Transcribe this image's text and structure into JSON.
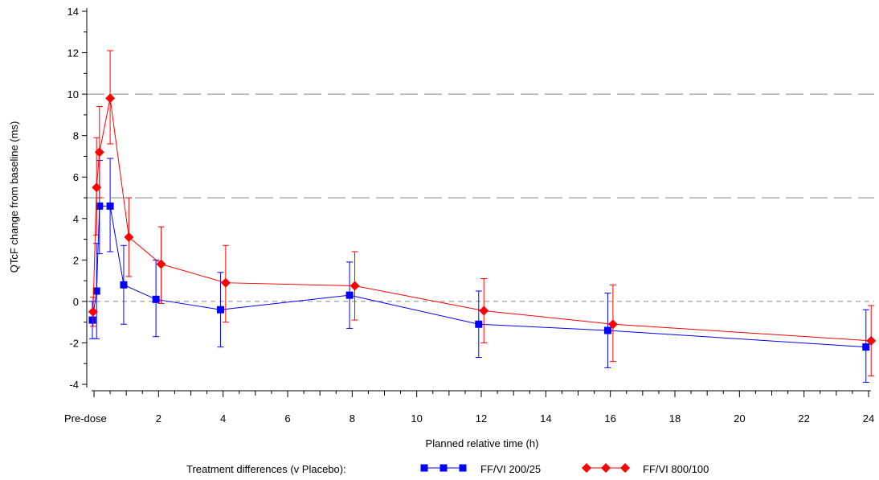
{
  "chart_data": {
    "type": "line",
    "xlabel": "Planned relative time (h)",
    "ylabel": "QTcF change from baseline (ms)",
    "xlim": [
      0,
      24
    ],
    "ylim": [
      -4,
      14
    ],
    "x_ticks": [
      {
        "value": 0,
        "label": "Pre-dose"
      },
      {
        "value": 2,
        "label": "2"
      },
      {
        "value": 4,
        "label": "4"
      },
      {
        "value": 6,
        "label": "6"
      },
      {
        "value": 8,
        "label": "8"
      },
      {
        "value": 10,
        "label": "10"
      },
      {
        "value": 12,
        "label": "12"
      },
      {
        "value": 14,
        "label": "14"
      },
      {
        "value": 16,
        "label": "16"
      },
      {
        "value": 18,
        "label": "18"
      },
      {
        "value": 20,
        "label": "20"
      },
      {
        "value": 22,
        "label": "22"
      },
      {
        "value": 24,
        "label": "24"
      }
    ],
    "y_ticks": [
      -4,
      -2,
      0,
      2,
      4,
      6,
      8,
      10,
      12,
      14
    ],
    "reference_lines": [
      0,
      5,
      10
    ],
    "legend": {
      "title": "Treatment differences (v Placebo):",
      "placement": "bottom"
    },
    "series": [
      {
        "name": "FF/VI 200/25",
        "color": "#0000ff",
        "marker": "square",
        "points": [
          {
            "x": -0.05,
            "y": -0.9,
            "low": -1.8,
            "high": 0.0
          },
          {
            "x": 0.08,
            "y": 0.5,
            "low": -1.8,
            "high": 2.8
          },
          {
            "x": 0.17,
            "y": 4.6,
            "low": 2.3,
            "high": 6.8
          },
          {
            "x": 0.5,
            "y": 4.6,
            "low": 2.4,
            "high": 6.9
          },
          {
            "x": 0.92,
            "y": 0.8,
            "low": -1.1,
            "high": 2.7
          },
          {
            "x": 1.92,
            "y": 0.1,
            "low": -1.7,
            "high": 2.0
          },
          {
            "x": 3.92,
            "y": -0.4,
            "low": -2.2,
            "high": 1.4
          },
          {
            "x": 7.92,
            "y": 0.3,
            "low": -1.3,
            "high": 1.9
          },
          {
            "x": 11.92,
            "y": -1.1,
            "low": -2.7,
            "high": 0.5
          },
          {
            "x": 15.92,
            "y": -1.4,
            "low": -3.2,
            "high": 0.4
          },
          {
            "x": 23.92,
            "y": -2.2,
            "low": -3.9,
            "high": -0.4
          }
        ]
      },
      {
        "name": "FF/VI 800/100",
        "color": "#ff0000",
        "marker": "diamond",
        "points": [
          {
            "x": -0.03,
            "y": -0.5,
            "low": -1.2,
            "high": 0.2
          },
          {
            "x": 0.08,
            "y": 5.5,
            "low": 3.2,
            "high": 7.9
          },
          {
            "x": 0.17,
            "y": 7.2,
            "low": 5.0,
            "high": 9.4
          },
          {
            "x": 0.5,
            "y": 9.8,
            "low": 7.6,
            "high": 12.1
          },
          {
            "x": 1.08,
            "y": 3.1,
            "low": 1.2,
            "high": 5.0
          },
          {
            "x": 2.08,
            "y": 1.8,
            "low": -0.1,
            "high": 3.6
          },
          {
            "x": 4.08,
            "y": 0.9,
            "low": -1.0,
            "high": 2.7
          },
          {
            "x": 8.08,
            "y": 0.75,
            "low": -0.9,
            "high": 2.4
          },
          {
            "x": 12.08,
            "y": -0.45,
            "low": -2.0,
            "high": 1.1
          },
          {
            "x": 16.08,
            "y": -1.1,
            "low": -2.9,
            "high": 0.8
          },
          {
            "x": 24.08,
            "y": -1.9,
            "low": -3.6,
            "high": -0.2
          }
        ]
      }
    ]
  }
}
